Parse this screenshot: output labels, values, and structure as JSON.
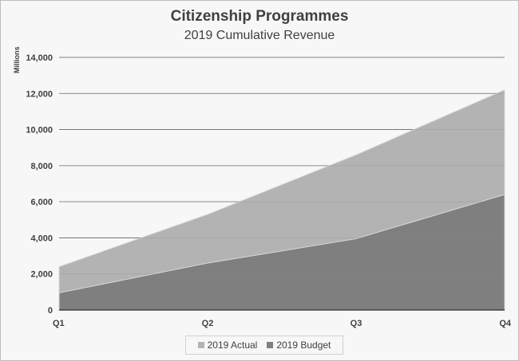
{
  "chart_data": {
    "type": "area",
    "title": "Citizenship Programmes",
    "subtitle": "2019 Cumulative Revenue",
    "ylabel": "Millions",
    "xlabel": "",
    "categories": [
      "Q1",
      "Q2",
      "Q3",
      "Q4"
    ],
    "ylim": [
      0,
      14000
    ],
    "yticks": [
      0,
      2000,
      4000,
      6000,
      8000,
      10000,
      12000,
      14000
    ],
    "ytick_labels": [
      "0",
      "2,000",
      "4,000",
      "6,000",
      "8,000",
      "10,000",
      "12,000",
      "14,000"
    ],
    "grid": true,
    "legend_position": "bottom",
    "series": [
      {
        "name": "2019 Actual",
        "values": [
          2400,
          5300,
          8600,
          12200
        ],
        "color": "#b3b3b3"
      },
      {
        "name": "2019 Budget",
        "values": [
          950,
          2600,
          3950,
          6400
        ],
        "color": "#7f7f7f"
      }
    ]
  }
}
